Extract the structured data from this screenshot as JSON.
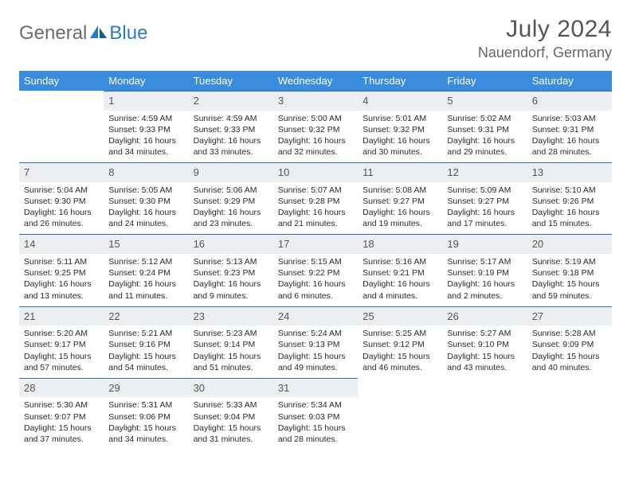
{
  "logo": {
    "text1": "General",
    "text2": "Blue"
  },
  "title": "July 2024",
  "location": "Nauendorf, Germany",
  "colors": {
    "header_bg": "#3a8dde",
    "header_text": "#ffffff",
    "row_divider": "#3672a8",
    "daynum_bg": "#eceff1",
    "body_text": "#2a2a2a",
    "title_text": "#555555"
  },
  "weekdays": [
    "Sunday",
    "Monday",
    "Tuesday",
    "Wednesday",
    "Thursday",
    "Friday",
    "Saturday"
  ],
  "weeks": [
    [
      {
        "empty": true
      },
      {
        "n": "1",
        "sr": "4:59 AM",
        "ss": "9:33 PM",
        "dl": "16 hours and 34 minutes."
      },
      {
        "n": "2",
        "sr": "4:59 AM",
        "ss": "9:33 PM",
        "dl": "16 hours and 33 minutes."
      },
      {
        "n": "3",
        "sr": "5:00 AM",
        "ss": "9:32 PM",
        "dl": "16 hours and 32 minutes."
      },
      {
        "n": "4",
        "sr": "5:01 AM",
        "ss": "9:32 PM",
        "dl": "16 hours and 30 minutes."
      },
      {
        "n": "5",
        "sr": "5:02 AM",
        "ss": "9:31 PM",
        "dl": "16 hours and 29 minutes."
      },
      {
        "n": "6",
        "sr": "5:03 AM",
        "ss": "9:31 PM",
        "dl": "16 hours and 28 minutes."
      }
    ],
    [
      {
        "n": "7",
        "sr": "5:04 AM",
        "ss": "9:30 PM",
        "dl": "16 hours and 26 minutes."
      },
      {
        "n": "8",
        "sr": "5:05 AM",
        "ss": "9:30 PM",
        "dl": "16 hours and 24 minutes."
      },
      {
        "n": "9",
        "sr": "5:06 AM",
        "ss": "9:29 PM",
        "dl": "16 hours and 23 minutes."
      },
      {
        "n": "10",
        "sr": "5:07 AM",
        "ss": "9:28 PM",
        "dl": "16 hours and 21 minutes."
      },
      {
        "n": "11",
        "sr": "5:08 AM",
        "ss": "9:27 PM",
        "dl": "16 hours and 19 minutes."
      },
      {
        "n": "12",
        "sr": "5:09 AM",
        "ss": "9:27 PM",
        "dl": "16 hours and 17 minutes."
      },
      {
        "n": "13",
        "sr": "5:10 AM",
        "ss": "9:26 PM",
        "dl": "16 hours and 15 minutes."
      }
    ],
    [
      {
        "n": "14",
        "sr": "5:11 AM",
        "ss": "9:25 PM",
        "dl": "16 hours and 13 minutes."
      },
      {
        "n": "15",
        "sr": "5:12 AM",
        "ss": "9:24 PM",
        "dl": "16 hours and 11 minutes."
      },
      {
        "n": "16",
        "sr": "5:13 AM",
        "ss": "9:23 PM",
        "dl": "16 hours and 9 minutes."
      },
      {
        "n": "17",
        "sr": "5:15 AM",
        "ss": "9:22 PM",
        "dl": "16 hours and 6 minutes."
      },
      {
        "n": "18",
        "sr": "5:16 AM",
        "ss": "9:21 PM",
        "dl": "16 hours and 4 minutes."
      },
      {
        "n": "19",
        "sr": "5:17 AM",
        "ss": "9:19 PM",
        "dl": "16 hours and 2 minutes."
      },
      {
        "n": "20",
        "sr": "5:19 AM",
        "ss": "9:18 PM",
        "dl": "15 hours and 59 minutes."
      }
    ],
    [
      {
        "n": "21",
        "sr": "5:20 AM",
        "ss": "9:17 PM",
        "dl": "15 hours and 57 minutes."
      },
      {
        "n": "22",
        "sr": "5:21 AM",
        "ss": "9:16 PM",
        "dl": "15 hours and 54 minutes."
      },
      {
        "n": "23",
        "sr": "5:23 AM",
        "ss": "9:14 PM",
        "dl": "15 hours and 51 minutes."
      },
      {
        "n": "24",
        "sr": "5:24 AM",
        "ss": "9:13 PM",
        "dl": "15 hours and 49 minutes."
      },
      {
        "n": "25",
        "sr": "5:25 AM",
        "ss": "9:12 PM",
        "dl": "15 hours and 46 minutes."
      },
      {
        "n": "26",
        "sr": "5:27 AM",
        "ss": "9:10 PM",
        "dl": "15 hours and 43 minutes."
      },
      {
        "n": "27",
        "sr": "5:28 AM",
        "ss": "9:09 PM",
        "dl": "15 hours and 40 minutes."
      }
    ],
    [
      {
        "n": "28",
        "sr": "5:30 AM",
        "ss": "9:07 PM",
        "dl": "15 hours and 37 minutes."
      },
      {
        "n": "29",
        "sr": "5:31 AM",
        "ss": "9:06 PM",
        "dl": "15 hours and 34 minutes."
      },
      {
        "n": "30",
        "sr": "5:33 AM",
        "ss": "9:04 PM",
        "dl": "15 hours and 31 minutes."
      },
      {
        "n": "31",
        "sr": "5:34 AM",
        "ss": "9:03 PM",
        "dl": "15 hours and 28 minutes."
      },
      {
        "empty": true
      },
      {
        "empty": true
      },
      {
        "empty": true
      }
    ]
  ],
  "labels": {
    "sunrise": "Sunrise:",
    "sunset": "Sunset:",
    "daylight": "Daylight:"
  }
}
